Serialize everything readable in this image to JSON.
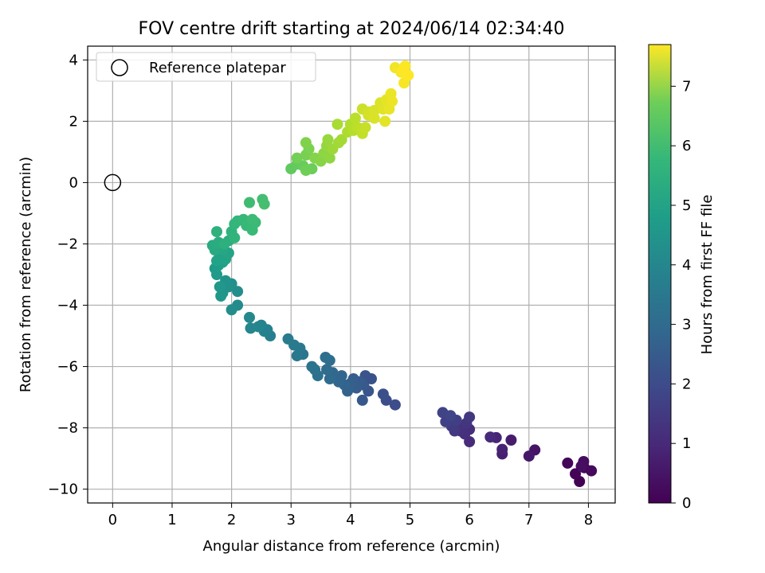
{
  "chart_data": {
    "type": "scatter",
    "title": "FOV centre drift starting at 2024/06/14 02:34:40",
    "xlabel": "Angular distance from reference (arcmin)",
    "ylabel": "Rotation from reference (arcmin)",
    "xlim": [
      -0.42,
      8.45
    ],
    "ylim": [
      -10.45,
      4.45
    ],
    "xticks": [
      0,
      1,
      2,
      3,
      4,
      5,
      6,
      7,
      8
    ],
    "yticks": [
      -10,
      -8,
      -6,
      -4,
      -2,
      0,
      2,
      4
    ],
    "grid": true,
    "legend": {
      "position": "top-left",
      "entries": [
        "Reference platepar"
      ]
    },
    "reference_point": {
      "x": 0,
      "y": 0
    },
    "colorbar": {
      "label": "Hours from first FF file",
      "min": 0,
      "max": 7.7,
      "ticks": [
        0,
        1,
        2,
        3,
        4,
        5,
        6,
        7
      ],
      "colormap": "viridis"
    },
    "points": [
      [
        7.85,
        -9.75,
        0.0
      ],
      [
        7.78,
        -9.5,
        0.05
      ],
      [
        7.65,
        -9.15,
        0.1
      ],
      [
        7.93,
        -9.3,
        0.15
      ],
      [
        8.05,
        -9.4,
        0.2
      ],
      [
        7.92,
        -9.1,
        0.25
      ],
      [
        7.88,
        -9.25,
        0.28
      ],
      [
        7.1,
        -8.72,
        0.4
      ],
      [
        7.0,
        -8.92,
        0.5
      ],
      [
        6.7,
        -8.4,
        0.6
      ],
      [
        6.55,
        -8.85,
        0.7
      ],
      [
        6.55,
        -8.7,
        0.75
      ],
      [
        6.45,
        -8.32,
        0.8
      ],
      [
        6.35,
        -8.3,
        0.9
      ],
      [
        6.0,
        -8.45,
        0.95
      ],
      [
        6.0,
        -8.05,
        1.0
      ],
      [
        5.92,
        -8.2,
        1.05
      ],
      [
        5.85,
        -8.1,
        1.1
      ],
      [
        5.8,
        -7.9,
        1.15
      ],
      [
        5.95,
        -7.85,
        1.2
      ],
      [
        6.0,
        -7.65,
        1.25
      ],
      [
        5.75,
        -8.1,
        1.3
      ],
      [
        5.7,
        -7.95,
        1.35
      ],
      [
        5.65,
        -7.7,
        1.4
      ],
      [
        5.78,
        -7.75,
        1.45
      ],
      [
        5.6,
        -7.8,
        1.5
      ],
      [
        5.55,
        -7.5,
        1.55
      ],
      [
        5.68,
        -7.6,
        1.6
      ],
      [
        4.75,
        -7.25,
        1.8
      ],
      [
        4.6,
        -7.1,
        1.85
      ],
      [
        4.55,
        -6.9,
        1.9
      ],
      [
        4.35,
        -6.4,
        1.95
      ],
      [
        4.25,
        -6.3,
        2.0
      ],
      [
        4.3,
        -6.8,
        2.05
      ],
      [
        4.2,
        -7.1,
        2.1
      ],
      [
        4.22,
        -6.6,
        2.15
      ],
      [
        4.15,
        -6.5,
        2.2
      ],
      [
        4.1,
        -6.7,
        2.25
      ],
      [
        4.05,
        -6.4,
        2.3
      ],
      [
        4.0,
        -6.55,
        2.35
      ],
      [
        3.95,
        -6.8,
        2.4
      ],
      [
        3.9,
        -6.6,
        2.45
      ],
      [
        3.85,
        -6.3,
        2.5
      ],
      [
        3.8,
        -6.5,
        2.55
      ],
      [
        3.7,
        -6.2,
        2.6
      ],
      [
        3.65,
        -6.4,
        2.65
      ],
      [
        3.6,
        -6.1,
        2.7
      ],
      [
        3.65,
        -5.8,
        2.75
      ],
      [
        3.58,
        -5.7,
        2.8
      ],
      [
        3.45,
        -6.3,
        2.85
      ],
      [
        3.4,
        -6.1,
        2.9
      ],
      [
        3.35,
        -6.0,
        2.95
      ],
      [
        3.2,
        -5.6,
        3.0
      ],
      [
        3.15,
        -5.4,
        3.05
      ],
      [
        3.1,
        -5.65,
        3.1
      ],
      [
        3.05,
        -5.3,
        3.15
      ],
      [
        2.95,
        -5.1,
        3.2
      ],
      [
        2.65,
        -5.0,
        3.3
      ],
      [
        2.6,
        -4.8,
        3.35
      ],
      [
        2.55,
        -4.85,
        3.4
      ],
      [
        2.5,
        -4.65,
        3.45
      ],
      [
        2.45,
        -4.7,
        3.5
      ],
      [
        2.32,
        -4.75,
        3.55
      ],
      [
        2.3,
        -4.4,
        3.6
      ],
      [
        2.1,
        -4.0,
        3.7
      ],
      [
        2.0,
        -4.15,
        3.75
      ],
      [
        2.1,
        -3.55,
        3.8
      ],
      [
        2.0,
        -3.3,
        3.85
      ],
      [
        1.95,
        -3.4,
        3.9
      ],
      [
        1.9,
        -3.2,
        3.95
      ],
      [
        1.85,
        -3.6,
        4.0
      ],
      [
        1.82,
        -3.7,
        4.05
      ],
      [
        1.8,
        -3.4,
        4.1
      ],
      [
        1.75,
        -3.0,
        4.15
      ],
      [
        1.72,
        -2.8,
        4.2
      ],
      [
        1.78,
        -2.7,
        4.25
      ],
      [
        1.85,
        -2.6,
        4.3
      ],
      [
        1.8,
        -2.4,
        4.35
      ],
      [
        1.75,
        -2.55,
        4.4
      ],
      [
        1.9,
        -2.5,
        4.45
      ],
      [
        1.95,
        -2.3,
        4.5
      ],
      [
        1.85,
        -2.2,
        4.55
      ],
      [
        1.8,
        -2.1,
        4.6
      ],
      [
        1.72,
        -2.2,
        4.65
      ],
      [
        1.68,
        -2.05,
        4.7
      ],
      [
        1.78,
        -1.95,
        4.75
      ],
      [
        1.95,
        -1.9,
        4.8
      ],
      [
        1.88,
        -2.0,
        4.85
      ],
      [
        1.75,
        -1.6,
        4.9
      ],
      [
        2.0,
        -1.6,
        4.95
      ],
      [
        2.05,
        -1.8,
        5.0
      ],
      [
        2.05,
        -1.35,
        5.05
      ],
      [
        2.1,
        -1.25,
        5.1
      ],
      [
        2.2,
        -1.2,
        5.15
      ],
      [
        2.25,
        -1.4,
        5.18
      ],
      [
        2.35,
        -1.55,
        5.2
      ],
      [
        2.4,
        -1.3,
        5.22
      ],
      [
        2.35,
        -1.2,
        5.25
      ],
      [
        2.3,
        -0.65,
        5.3
      ],
      [
        2.52,
        -0.55,
        5.35
      ],
      [
        2.55,
        -0.7,
        5.4
      ],
      [
        3.0,
        0.45,
        5.8
      ],
      [
        3.1,
        0.6,
        5.85
      ],
      [
        3.2,
        0.55,
        5.9
      ],
      [
        3.35,
        0.45,
        5.95
      ],
      [
        3.25,
        0.4,
        6.0
      ],
      [
        3.1,
        0.8,
        6.05
      ],
      [
        3.25,
        0.9,
        6.1
      ],
      [
        3.3,
        1.1,
        6.15
      ],
      [
        3.25,
        1.3,
        6.2
      ],
      [
        3.4,
        0.8,
        6.25
      ],
      [
        3.5,
        0.7,
        6.3
      ],
      [
        3.55,
        0.95,
        6.35
      ],
      [
        3.65,
        0.8,
        6.4
      ],
      [
        3.6,
        1.2,
        6.45
      ],
      [
        3.62,
        1.4,
        6.5
      ],
      [
        3.7,
        1.1,
        6.55
      ],
      [
        3.8,
        1.3,
        6.6
      ],
      [
        3.85,
        1.4,
        6.65
      ],
      [
        3.78,
        1.9,
        6.7
      ],
      [
        3.95,
        1.65,
        6.75
      ],
      [
        4.0,
        1.9,
        6.8
      ],
      [
        4.05,
        1.7,
        6.85
      ],
      [
        4.08,
        2.1,
        6.9
      ],
      [
        4.12,
        1.8,
        6.95
      ],
      [
        4.2,
        1.6,
        7.0
      ],
      [
        4.25,
        1.8,
        7.05
      ],
      [
        4.2,
        2.4,
        7.1
      ],
      [
        4.3,
        2.3,
        7.15
      ],
      [
        4.3,
        2.2,
        7.2
      ],
      [
        4.4,
        2.35,
        7.25
      ],
      [
        4.4,
        2.1,
        7.28
      ],
      [
        4.5,
        2.6,
        7.3
      ],
      [
        4.55,
        2.4,
        7.35
      ],
      [
        4.58,
        2.0,
        7.38
      ],
      [
        4.6,
        2.7,
        7.4
      ],
      [
        4.65,
        2.4,
        7.45
      ],
      [
        4.68,
        2.9,
        7.48
      ],
      [
        4.7,
        2.65,
        7.5
      ],
      [
        4.75,
        3.75,
        7.55
      ],
      [
        4.85,
        3.6,
        7.6
      ],
      [
        4.9,
        3.25,
        7.63
      ],
      [
        4.92,
        3.8,
        7.66
      ],
      [
        4.97,
        3.5,
        7.7
      ],
      [
        4.88,
        3.65,
        7.7
      ]
    ]
  }
}
